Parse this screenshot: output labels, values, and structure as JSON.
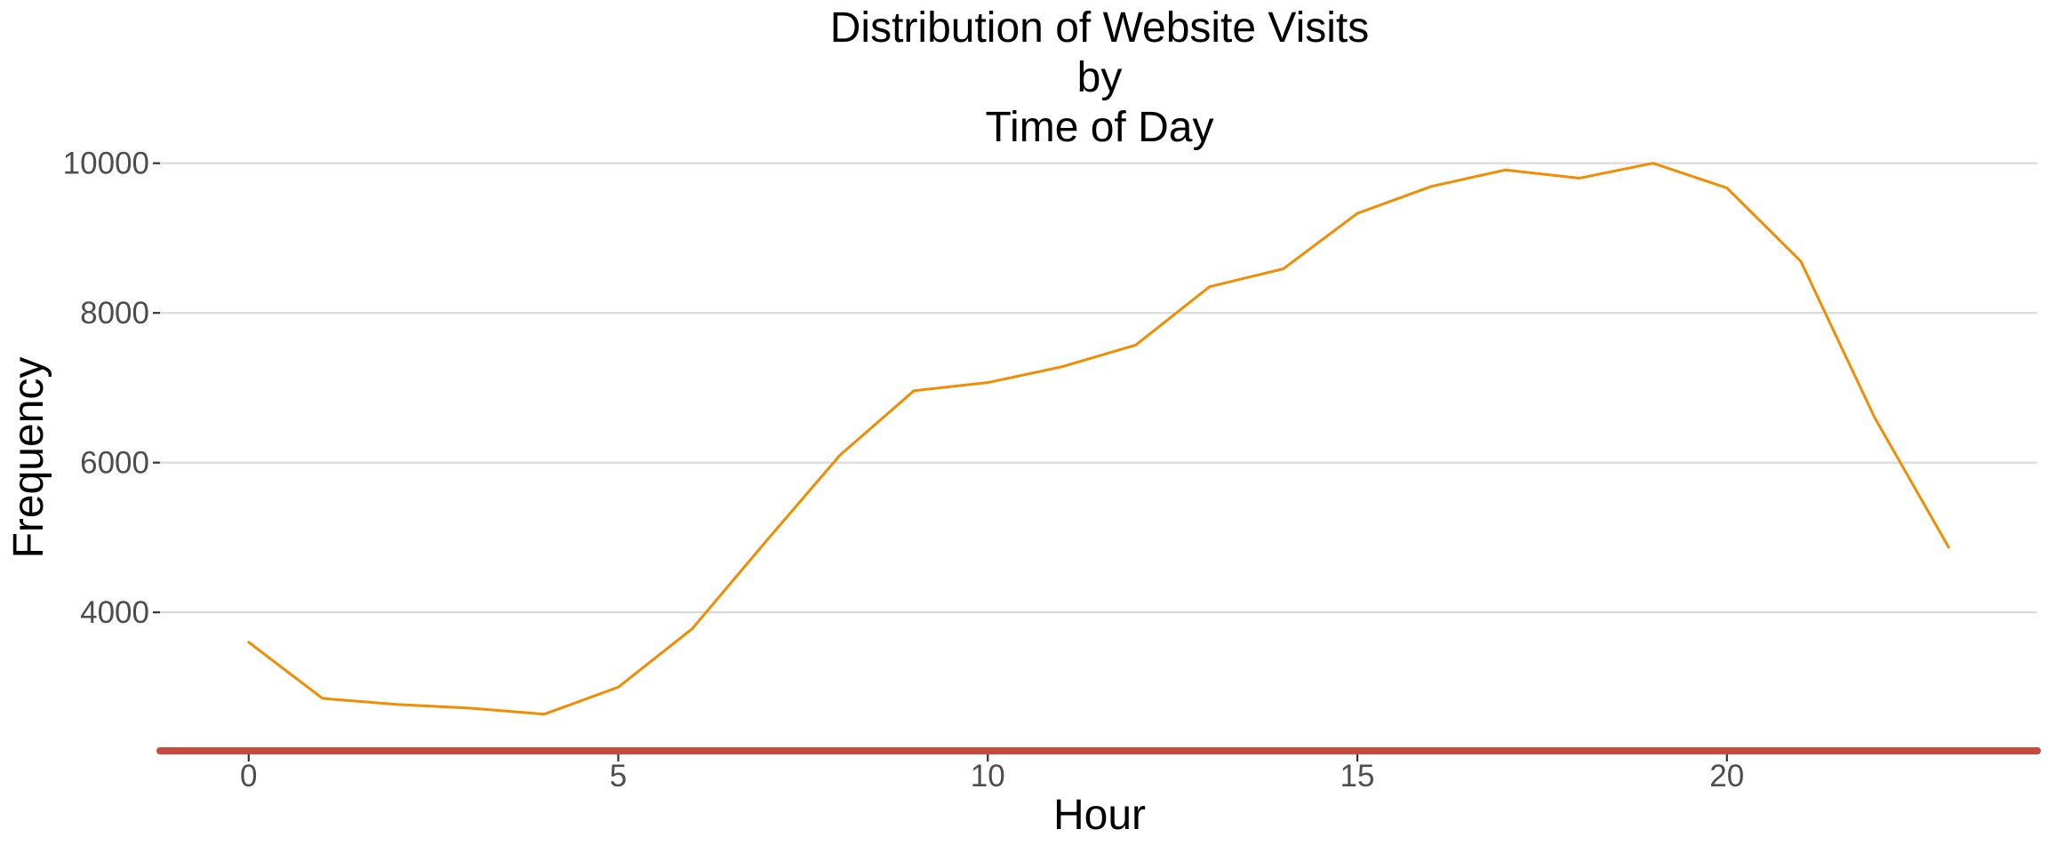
{
  "chart_data": {
    "type": "line",
    "title_lines": [
      "Distribution of Website Visits",
      "by",
      "Time of Day"
    ],
    "xlabel": "Hour",
    "ylabel": "Frequency",
    "xlim": [
      -1.2,
      24.2
    ],
    "ylim": [
      2150,
      10400
    ],
    "x_ticks": [
      0,
      5,
      10,
      15,
      20
    ],
    "y_ticks": [
      4000,
      6000,
      8000,
      10000
    ],
    "grid": "horizontal major lines only",
    "series": [
      {
        "color": "#f28c00",
        "x": [
          0,
          1,
          2,
          3,
          4,
          5,
          6,
          7,
          8,
          9,
          10,
          11,
          12,
          13,
          14,
          15,
          16,
          17,
          18,
          19,
          20,
          21,
          22,
          23
        ],
        "y": [
          3600,
          2850,
          2770,
          2720,
          2640,
          3000,
          3780,
          4950,
          6100,
          6960,
          7070,
          7280,
          7570,
          8350,
          8590,
          9330,
          9690,
          9910,
          9800,
          10000,
          9670,
          8690,
          6600,
          4870
        ]
      }
    ],
    "baseline": {
      "color": "#c94a3b"
    }
  }
}
